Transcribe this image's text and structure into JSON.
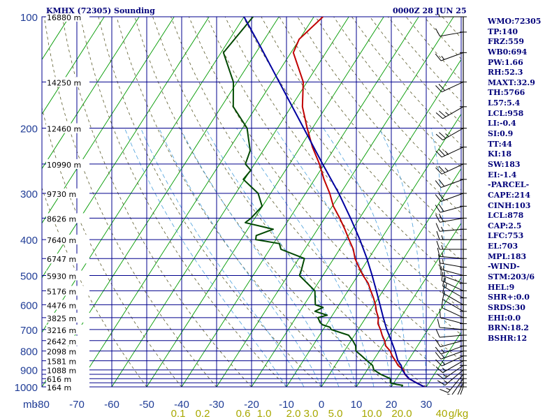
{
  "header": {
    "station": "KMHX (72305) Sounding",
    "time": "0000Z 28 JUN 25"
  },
  "chart_data": {
    "type": "line",
    "title": "KMHX (72305) Sounding",
    "subtitle": "0000Z 28 JUN 25",
    "xlabel": "",
    "ylabel": "mb",
    "xlim": [
      -80,
      30
    ],
    "ylim": [
      1000,
      100
    ],
    "x_ticks": [
      -80,
      -70,
      -60,
      -50,
      -40,
      -30,
      -20,
      -10,
      0,
      10,
      20,
      30
    ],
    "pressure_ticks": [
      100,
      200,
      300,
      400,
      500,
      600,
      700,
      800,
      900,
      1000
    ],
    "pressure_lines": [
      100,
      150,
      200,
      250,
      300,
      350,
      400,
      450,
      500,
      550,
      600,
      650,
      700,
      750,
      800,
      850,
      900,
      925,
      950,
      975,
      1000
    ],
    "height_labels": [
      {
        "p": 100,
        "label": "16880 m"
      },
      {
        "p": 150,
        "label": "14250 m"
      },
      {
        "p": 200,
        "label": "12460 m"
      },
      {
        "p": 250,
        "label": "10990 m"
      },
      {
        "p": 300,
        "label": "9730 m"
      },
      {
        "p": 350,
        "label": "8626 m"
      },
      {
        "p": 400,
        "label": "7640 m"
      },
      {
        "p": 450,
        "label": "6747 m"
      },
      {
        "p": 500,
        "label": "5930 m"
      },
      {
        "p": 550,
        "label": "5176 m"
      },
      {
        "p": 600,
        "label": "4476 m"
      },
      {
        "p": 650,
        "label": "3825 m"
      },
      {
        "p": 700,
        "label": "3216 m"
      },
      {
        "p": 750,
        "label": "2642 m"
      },
      {
        "p": 800,
        "label": "2098 m"
      },
      {
        "p": 850,
        "label": "1581 m"
      },
      {
        "p": 900,
        "label": "1088 m"
      },
      {
        "p": 950,
        "label": "616 m"
      },
      {
        "p": 1000,
        "label": "164 m"
      }
    ],
    "mixing_ratio_labels": [
      "0.1",
      "0.2",
      "0.6",
      "1.0",
      "2.0",
      "3.0",
      "5.0",
      "10.0",
      "20.0",
      "40",
      "g/kg"
    ],
    "series": [
      {
        "role": "temperature",
        "color": "#c00000",
        "points": [
          [
            1013,
            29
          ],
          [
            1000,
            29.5
          ],
          [
            975,
            26.5
          ],
          [
            950,
            23.5
          ],
          [
            925,
            21.6
          ],
          [
            900,
            20.4
          ],
          [
            875,
            18
          ],
          [
            850,
            16.4
          ],
          [
            825,
            14.6
          ],
          [
            800,
            13.1
          ],
          [
            775,
            10.9
          ],
          [
            750,
            9.6
          ],
          [
            725,
            7.9
          ],
          [
            700,
            6.4
          ],
          [
            675,
            4.6
          ],
          [
            650,
            3.6
          ],
          [
            625,
            1.9
          ],
          [
            600,
            0.4
          ],
          [
            575,
            -1.4
          ],
          [
            550,
            -3.5
          ],
          [
            525,
            -5.6
          ],
          [
            500,
            -8.5
          ],
          [
            475,
            -11.2
          ],
          [
            450,
            -13.9
          ],
          [
            425,
            -16.1
          ],
          [
            400,
            -19.1
          ],
          [
            375,
            -22.2
          ],
          [
            350,
            -25.7
          ],
          [
            325,
            -29.7
          ],
          [
            300,
            -33.1
          ],
          [
            275,
            -37.3
          ],
          [
            250,
            -41.4
          ],
          [
            225,
            -46.5
          ],
          [
            200,
            -51.5
          ],
          [
            175,
            -56.8
          ],
          [
            150,
            -61.1
          ],
          [
            125,
            -69.3
          ],
          [
            115,
            -70.1
          ],
          [
            100,
            -67.4
          ]
        ]
      },
      {
        "role": "dewpoint",
        "color": "#004800",
        "points": [
          [
            1013,
            23
          ],
          [
            1000,
            23
          ],
          [
            990,
            22.9
          ],
          [
            985,
            21.1
          ],
          [
            975,
            19
          ],
          [
            950,
            18.2
          ],
          [
            925,
            14.7
          ],
          [
            900,
            11.9
          ],
          [
            875,
            10.7
          ],
          [
            850,
            8.3
          ],
          [
            825,
            5.9
          ],
          [
            800,
            3.3
          ],
          [
            775,
            2.3
          ],
          [
            750,
            0.5
          ],
          [
            725,
            -1.7
          ],
          [
            700,
            -7.7
          ],
          [
            690,
            -8.5
          ],
          [
            680,
            -11
          ],
          [
            670,
            -12.2
          ],
          [
            650,
            -13.7
          ],
          [
            640,
            -11.5
          ],
          [
            625,
            -15.7
          ],
          [
            610,
            -14.1
          ],
          [
            600,
            -16.8
          ],
          [
            550,
            -19.5
          ],
          [
            500,
            -26.7
          ],
          [
            485,
            -27.1
          ],
          [
            450,
            -28.4
          ],
          [
            425,
            -36.8
          ],
          [
            410,
            -38.3
          ],
          [
            400,
            -45.8
          ],
          [
            390,
            -46.4
          ],
          [
            375,
            -42.7
          ],
          [
            360,
            -51.9
          ],
          [
            350,
            -51.1
          ],
          [
            325,
            -50.1
          ],
          [
            300,
            -53.6
          ],
          [
            275,
            -60.4
          ],
          [
            260,
            -59.9
          ],
          [
            250,
            -62.6
          ],
          [
            230,
            -63.7
          ],
          [
            200,
            -68.7
          ],
          [
            175,
            -76.6
          ],
          [
            150,
            -81.1
          ],
          [
            125,
            -89.3
          ],
          [
            100,
            -87.4
          ]
        ]
      },
      {
        "role": "parcel",
        "color": "#0000a0",
        "points": [
          [
            1000,
            29.5
          ],
          [
            975,
            26.4
          ],
          [
            950,
            23.6
          ],
          [
            925,
            21.7
          ],
          [
            900,
            20
          ],
          [
            875,
            18.9
          ],
          [
            850,
            17.1
          ],
          [
            800,
            14.5
          ],
          [
            750,
            11.5
          ],
          [
            700,
            8.2
          ],
          [
            650,
            5
          ],
          [
            600,
            1.7
          ],
          [
            550,
            -1.9
          ],
          [
            500,
            -5.9
          ],
          [
            450,
            -10.5
          ],
          [
            400,
            -16
          ],
          [
            350,
            -22.6
          ],
          [
            300,
            -30.5
          ],
          [
            250,
            -40.5
          ],
          [
            200,
            -52.5
          ],
          [
            150,
            -68
          ],
          [
            120,
            -80
          ],
          [
            100,
            -90
          ]
        ]
      }
    ],
    "wind_barbs": [
      {
        "p": 1000,
        "dir": 200,
        "spd": 10
      },
      {
        "p": 975,
        "dir": 205,
        "spd": 15
      },
      {
        "p": 950,
        "dir": 215,
        "spd": 15
      },
      {
        "p": 925,
        "dir": 220,
        "spd": 15
      },
      {
        "p": 900,
        "dir": 230,
        "spd": 15
      },
      {
        "p": 875,
        "dir": 235,
        "spd": 15
      },
      {
        "p": 850,
        "dir": 240,
        "spd": 15
      },
      {
        "p": 825,
        "dir": 245,
        "spd": 15
      },
      {
        "p": 800,
        "dir": 250,
        "spd": 15
      },
      {
        "p": 775,
        "dir": 250,
        "spd": 15
      },
      {
        "p": 750,
        "dir": 255,
        "spd": 10
      },
      {
        "p": 725,
        "dir": 265,
        "spd": 10
      },
      {
        "p": 700,
        "dir": 275,
        "spd": 10
      },
      {
        "p": 675,
        "dir": 285,
        "spd": 10
      },
      {
        "p": 650,
        "dir": 295,
        "spd": 10
      },
      {
        "p": 625,
        "dir": 300,
        "spd": 10
      },
      {
        "p": 600,
        "dir": 300,
        "spd": 10
      },
      {
        "p": 575,
        "dir": 300,
        "spd": 15
      },
      {
        "p": 550,
        "dir": 295,
        "spd": 15
      },
      {
        "p": 525,
        "dir": 290,
        "spd": 15
      },
      {
        "p": 500,
        "dir": 285,
        "spd": 15
      },
      {
        "p": 475,
        "dir": 280,
        "spd": 15
      },
      {
        "p": 450,
        "dir": 275,
        "spd": 15
      },
      {
        "p": 425,
        "dir": 270,
        "spd": 15
      },
      {
        "p": 400,
        "dir": 270,
        "spd": 15
      },
      {
        "p": 375,
        "dir": 265,
        "spd": 15
      },
      {
        "p": 350,
        "dir": 260,
        "spd": 20
      },
      {
        "p": 325,
        "dir": 255,
        "spd": 20
      },
      {
        "p": 300,
        "dir": 250,
        "spd": 20
      },
      {
        "p": 275,
        "dir": 250,
        "spd": 20
      },
      {
        "p": 250,
        "dir": 245,
        "spd": 25
      },
      {
        "p": 225,
        "dir": 245,
        "spd": 25
      },
      {
        "p": 200,
        "dir": 240,
        "spd": 25
      },
      {
        "p": 175,
        "dir": 240,
        "spd": 25
      },
      {
        "p": 150,
        "dir": 245,
        "spd": 20
      },
      {
        "p": 125,
        "dir": 250,
        "spd": 15
      },
      {
        "p": 110,
        "dir": 260,
        "spd": 10
      },
      {
        "p": 100,
        "dir": 270,
        "spd": 10
      }
    ]
  },
  "indices": [
    "WMO:72305",
    "TP:140",
    "FRZ:559",
    "WB0:694",
    "PW:1.66",
    "RH:52.3",
    "MAXT:32.9",
    "TH:5766",
    "L57:5.4",
    "LCL:958",
    "LI:-0.4",
    "SI:0.9",
    "TT:44",
    "KI:18",
    "SW:183",
    "EI:-1.4",
    "-PARCEL-",
    "CAPE:214",
    "CINH:103",
    "LCL:878",
    "CAP:2.5",
    "LFC:753",
    "EL:703",
    "MPL:183",
    "-WIND-",
    "STM:203/6",
    "HEL:9",
    "SHR+:0.0",
    "SRDS:30",
    "EHI:0.0",
    "BRN:18.2",
    "BSHR:12"
  ],
  "colors": {
    "grid": "#00008c",
    "isotherm": "#009a00",
    "dry_adiabat": "#5a5a2a",
    "moist_adiabat": "#4aa0dc",
    "axis_text": "#1f3c96",
    "mix_text": "#a8a800"
  }
}
